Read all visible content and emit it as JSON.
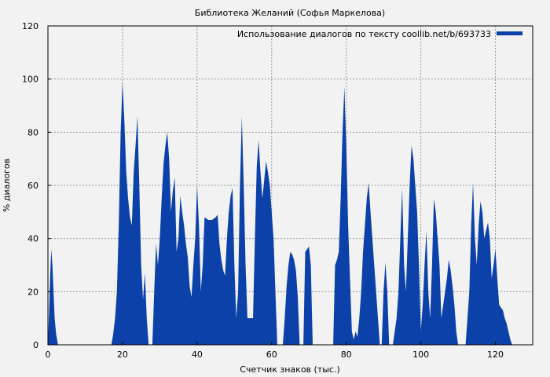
{
  "chart_data": {
    "type": "area",
    "title": "Библиотека Желаний (Софья Маркелова)",
    "xlabel": "Счетчик знаков (тыс.)",
    "ylabel": "% диалогов",
    "xlim": [
      0,
      130
    ],
    "ylim": [
      0,
      120
    ],
    "xticks": [
      0,
      20,
      40,
      60,
      80,
      100,
      120
    ],
    "yticks": [
      0,
      20,
      40,
      60,
      80,
      100,
      120
    ],
    "grid": true,
    "legend_position": "top-right",
    "colors": {
      "series": "#0b41a8",
      "grid": "#999999",
      "background": "#f2f2f2"
    },
    "series": [
      {
        "name": "Использование диалогов по тексту coollib.net/b/693733",
        "points": [
          [
            0,
            0
          ],
          [
            0.3,
            12
          ],
          [
            0.6,
            26
          ],
          [
            0.9,
            36
          ],
          [
            1.2,
            30
          ],
          [
            1.5,
            20
          ],
          [
            1.8,
            10
          ],
          [
            2.2,
            4
          ],
          [
            2.7,
            0
          ],
          [
            17,
            0
          ],
          [
            17.5,
            4
          ],
          [
            18,
            10
          ],
          [
            18.5,
            20
          ],
          [
            19,
            45
          ],
          [
            19.5,
            80
          ],
          [
            20,
            99
          ],
          [
            20.5,
            84
          ],
          [
            21,
            65
          ],
          [
            21.5,
            55
          ],
          [
            22,
            48
          ],
          [
            22.5,
            45
          ],
          [
            23,
            65
          ],
          [
            23.5,
            75
          ],
          [
            24,
            86
          ],
          [
            24.5,
            60
          ],
          [
            25,
            30
          ],
          [
            25.5,
            17
          ],
          [
            26,
            27
          ],
          [
            26.5,
            10
          ],
          [
            27,
            0
          ],
          [
            28,
            0
          ],
          [
            28.5,
            20
          ],
          [
            29,
            38
          ],
          [
            29.5,
            30
          ],
          [
            30,
            40
          ],
          [
            30.5,
            55
          ],
          [
            31,
            68
          ],
          [
            31.5,
            75
          ],
          [
            32,
            80
          ],
          [
            32.5,
            70
          ],
          [
            33,
            50
          ],
          [
            33.5,
            58
          ],
          [
            34,
            63
          ],
          [
            34.5,
            35
          ],
          [
            35,
            40
          ],
          [
            35.5,
            56
          ],
          [
            36,
            50
          ],
          [
            36.5,
            45
          ],
          [
            37,
            38
          ],
          [
            37.5,
            33
          ],
          [
            38,
            22
          ],
          [
            38.5,
            18
          ],
          [
            39,
            30
          ],
          [
            39.5,
            40
          ],
          [
            40,
            60
          ],
          [
            40.5,
            45
          ],
          [
            41,
            20
          ],
          [
            41.5,
            30
          ],
          [
            42,
            48
          ],
          [
            43,
            47
          ],
          [
            44,
            47
          ],
          [
            45,
            48
          ],
          [
            45.5,
            49
          ],
          [
            46,
            38
          ],
          [
            46.5,
            32
          ],
          [
            47,
            28
          ],
          [
            47.5,
            26
          ],
          [
            48,
            40
          ],
          [
            48.5,
            50
          ],
          [
            49,
            56
          ],
          [
            49.5,
            59
          ],
          [
            50,
            30
          ],
          [
            50.5,
            10
          ],
          [
            51,
            20
          ],
          [
            51.5,
            60
          ],
          [
            52,
            86
          ],
          [
            52.5,
            60
          ],
          [
            53,
            30
          ],
          [
            53.5,
            10
          ],
          [
            55,
            10
          ],
          [
            55.5,
            40
          ],
          [
            56,
            67
          ],
          [
            56.5,
            77
          ],
          [
            57,
            65
          ],
          [
            57.5,
            55
          ],
          [
            58,
            62
          ],
          [
            58.5,
            69
          ],
          [
            59,
            65
          ],
          [
            59.5,
            60
          ],
          [
            60,
            50
          ],
          [
            60.5,
            40
          ],
          [
            61,
            20
          ],
          [
            61.5,
            0
          ],
          [
            63,
            0
          ],
          [
            63.5,
            10
          ],
          [
            64,
            22
          ],
          [
            64.5,
            30
          ],
          [
            65,
            35
          ],
          [
            65.5,
            34
          ],
          [
            66,
            32
          ],
          [
            66.5,
            28
          ],
          [
            67,
            18
          ],
          [
            67.5,
            0
          ],
          [
            68.5,
            0
          ],
          [
            69,
            35
          ],
          [
            69.5,
            36
          ],
          [
            70,
            37
          ],
          [
            70.5,
            30
          ],
          [
            71,
            0
          ],
          [
            76.5,
            0
          ],
          [
            77,
            30
          ],
          [
            77.5,
            32
          ],
          [
            78,
            35
          ],
          [
            78.5,
            55
          ],
          [
            79,
            80
          ],
          [
            79.5,
            97
          ],
          [
            80,
            75
          ],
          [
            80.5,
            45
          ],
          [
            81,
            25
          ],
          [
            81.5,
            5
          ],
          [
            82,
            2
          ],
          [
            82.5,
            5
          ],
          [
            83,
            3
          ],
          [
            83.5,
            10
          ],
          [
            84,
            20
          ],
          [
            84.5,
            35
          ],
          [
            85,
            45
          ],
          [
            85.5,
            55
          ],
          [
            86,
            61
          ],
          [
            86.5,
            50
          ],
          [
            87,
            40
          ],
          [
            87.5,
            30
          ],
          [
            88,
            20
          ],
          [
            88.5,
            10
          ],
          [
            89,
            0
          ],
          [
            89.5,
            0
          ],
          [
            90,
            20
          ],
          [
            90.5,
            31
          ],
          [
            91,
            20
          ],
          [
            91.5,
            0
          ],
          [
            92.5,
            0
          ],
          [
            93,
            5
          ],
          [
            93.5,
            10
          ],
          [
            94,
            20
          ],
          [
            94.5,
            40
          ],
          [
            95,
            59
          ],
          [
            95.5,
            30
          ],
          [
            96,
            20
          ],
          [
            96.5,
            40
          ],
          [
            97,
            60
          ],
          [
            97.5,
            75
          ],
          [
            98,
            70
          ],
          [
            98.5,
            60
          ],
          [
            99,
            50
          ],
          [
            99.5,
            30
          ],
          [
            100,
            5
          ],
          [
            100.5,
            15
          ],
          [
            101,
            30
          ],
          [
            101.5,
            43
          ],
          [
            102,
            20
          ],
          [
            102.5,
            10
          ],
          [
            103,
            30
          ],
          [
            103.5,
            55
          ],
          [
            104,
            50
          ],
          [
            104.5,
            40
          ],
          [
            105,
            30
          ],
          [
            105.5,
            10
          ],
          [
            106,
            15
          ],
          [
            106.5,
            20
          ],
          [
            107,
            25
          ],
          [
            107.5,
            32
          ],
          [
            108,
            28
          ],
          [
            108.5,
            22
          ],
          [
            109,
            15
          ],
          [
            109.5,
            5
          ],
          [
            110,
            0
          ],
          [
            112,
            0
          ],
          [
            112.5,
            10
          ],
          [
            113,
            20
          ],
          [
            113.5,
            45
          ],
          [
            114,
            61
          ],
          [
            114.5,
            40
          ],
          [
            115,
            30
          ],
          [
            115.5,
            45
          ],
          [
            116,
            54
          ],
          [
            116.5,
            50
          ],
          [
            117,
            40
          ],
          [
            117.5,
            43
          ],
          [
            118,
            46
          ],
          [
            118.5,
            40
          ],
          [
            119,
            25
          ],
          [
            119.5,
            30
          ],
          [
            120,
            36
          ],
          [
            120.5,
            25
          ],
          [
            121,
            15
          ],
          [
            121.5,
            14
          ],
          [
            122,
            13
          ],
          [
            122.5,
            10
          ],
          [
            123,
            8
          ],
          [
            123.5,
            5
          ],
          [
            124,
            2
          ],
          [
            124.5,
            0
          ]
        ]
      }
    ]
  }
}
